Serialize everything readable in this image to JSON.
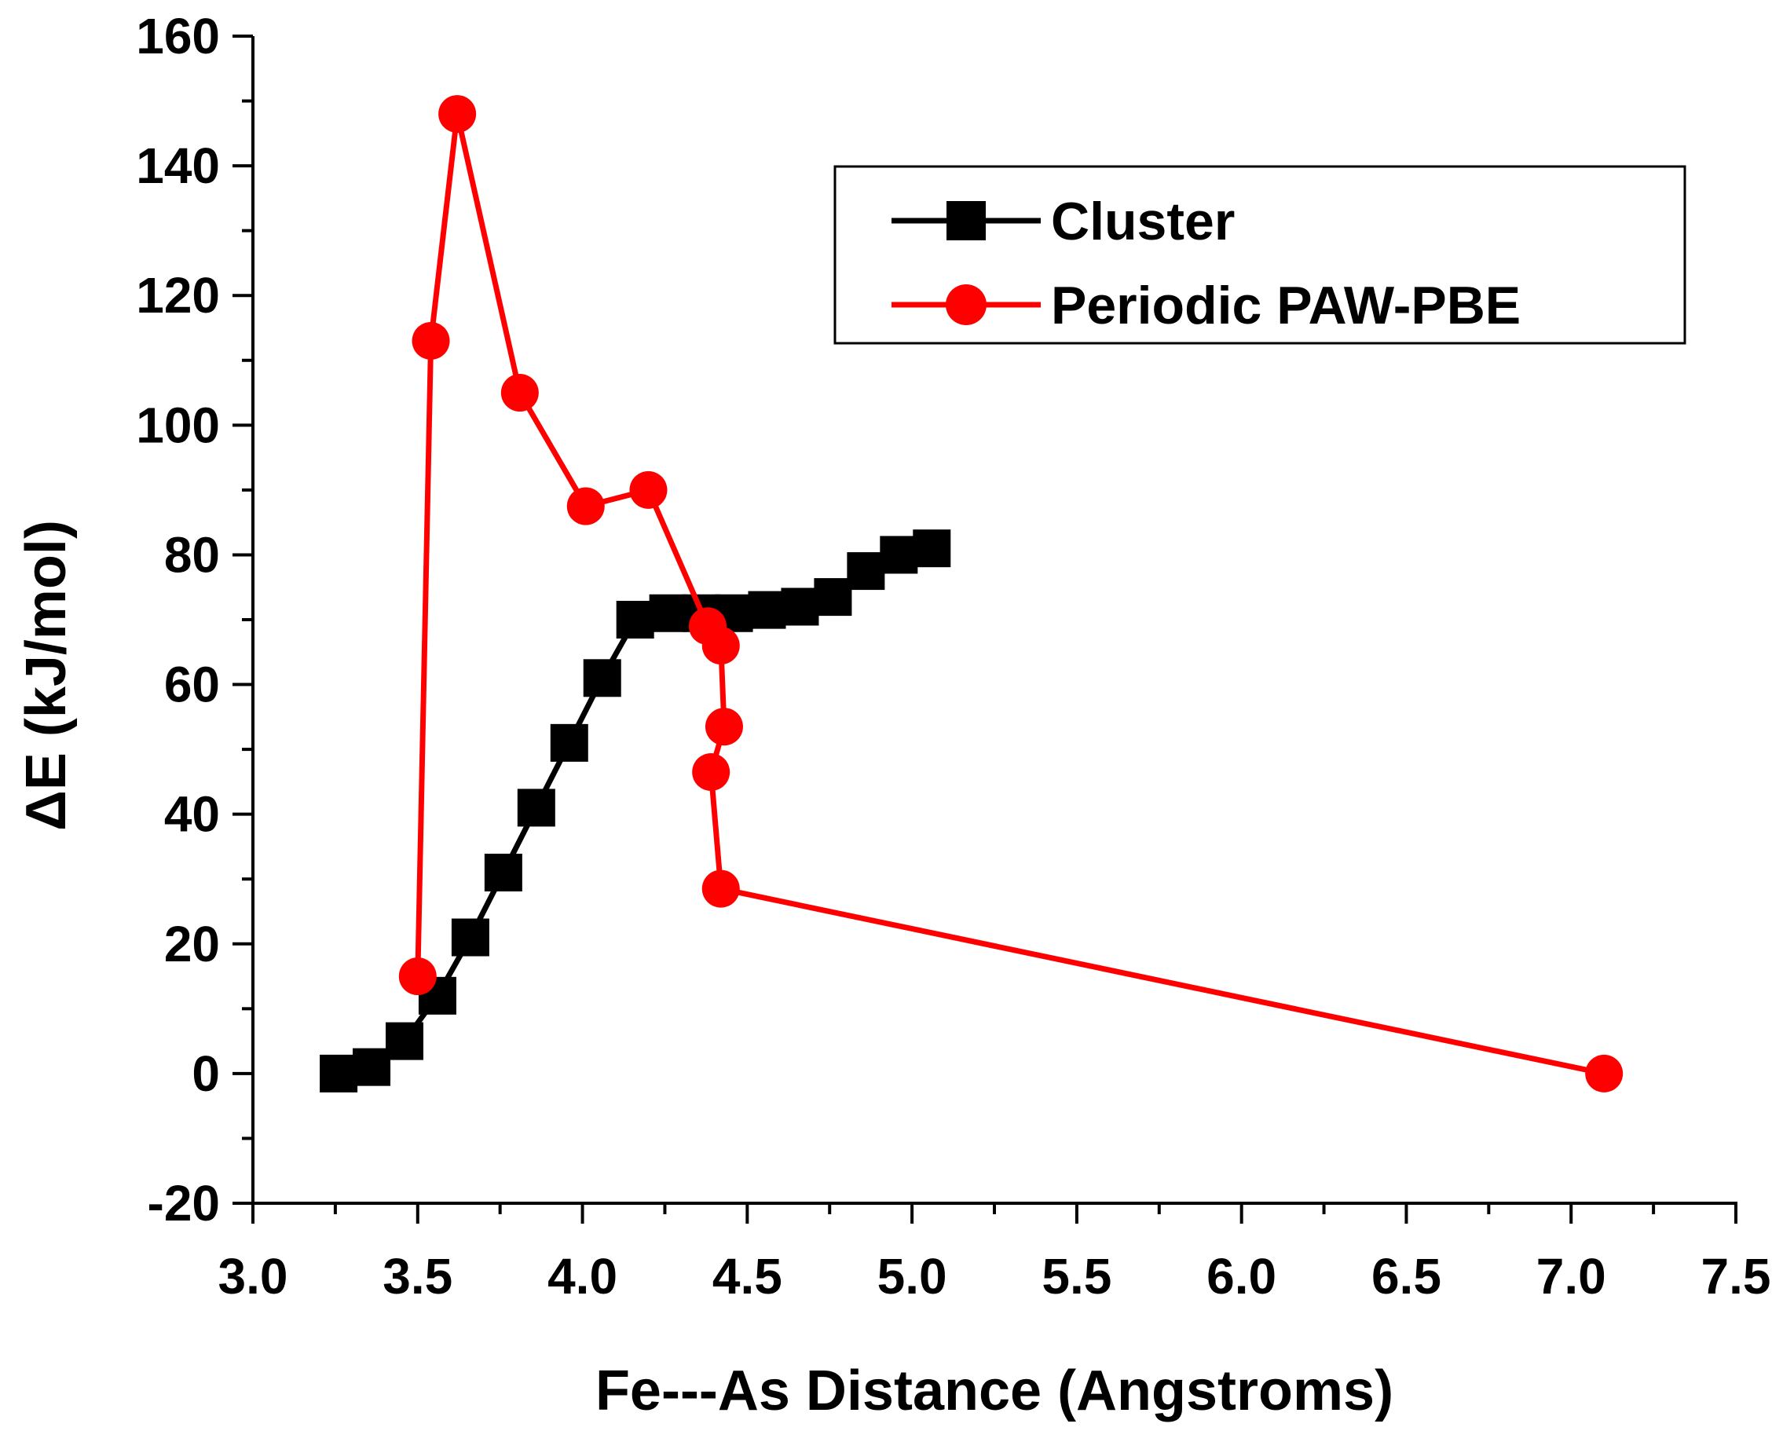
{
  "chart_data": {
    "type": "line",
    "xlabel": "Fe---As Distance (Angstroms)",
    "ylabel": "ΔE (kJ/mol)",
    "xlim": [
      3.0,
      7.5
    ],
    "ylim": [
      -20,
      160
    ],
    "xticks": [
      "3.0",
      "3.5",
      "4.0",
      "4.5",
      "5.0",
      "5.5",
      "6.0",
      "6.5",
      "7.0",
      "7.5"
    ],
    "yticks": [
      "-20",
      "0",
      "20",
      "40",
      "60",
      "80",
      "100",
      "120",
      "140",
      "160"
    ],
    "grid": false,
    "legend_position": "top-right",
    "series": [
      {
        "name": "Cluster",
        "color": "#000000",
        "marker": "square",
        "x": [
          3.26,
          3.36,
          3.46,
          3.56,
          3.66,
          3.76,
          3.86,
          3.96,
          4.06,
          4.16,
          4.26,
          4.36,
          4.46,
          4.56,
          4.66,
          4.76,
          4.86,
          4.96,
          5.06
        ],
        "y": [
          0,
          1,
          5,
          12,
          21,
          31,
          41,
          51,
          61,
          70,
          71,
          71,
          71,
          71.5,
          72,
          73.5,
          77.5,
          80,
          81
        ]
      },
      {
        "name": "Periodic PAW-PBE",
        "color": "#ff0000",
        "marker": "circle",
        "x": [
          3.5,
          3.54,
          3.62,
          3.81,
          4.01,
          4.2,
          4.38,
          4.42,
          4.43,
          4.39,
          4.42,
          7.1
        ],
        "y": [
          15,
          113,
          148,
          105,
          87.5,
          90,
          69,
          66,
          53.5,
          46.5,
          28.5,
          0
        ]
      }
    ]
  }
}
